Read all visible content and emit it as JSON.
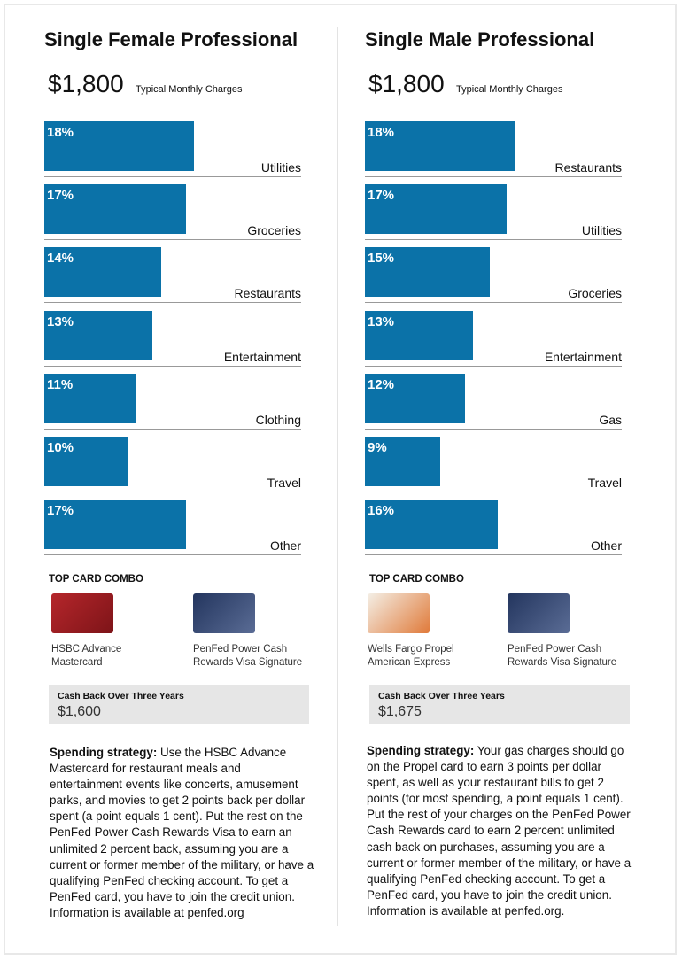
{
  "chart_data": [
    {
      "type": "bar",
      "orientation": "horizontal",
      "title": "Single Female Professional",
      "amount": "$1,800",
      "amount_label": "Typical Monthly Charges",
      "color": "#0b72a8",
      "categories": [
        "Utilities",
        "Groceries",
        "Restaurants",
        "Entertainment",
        "Clothing",
        "Travel",
        "Other"
      ],
      "values": [
        18,
        17,
        14,
        13,
        11,
        10,
        17
      ],
      "value_labels": [
        "18%",
        "17%",
        "14%",
        "13%",
        "11%",
        "10%",
        "17%"
      ],
      "combo_title": "TOP CARD COMBO",
      "cards": [
        "HSBC Advance Mastercard",
        "PenFed Power Cash Rewards Visa Signature"
      ],
      "cashback_label": "Cash Back Over Three Years",
      "cashback": "$1,600",
      "strategy_lead": "Spending strategy:",
      "strategy": "Use the HSBC Advance Mastercard for restaurant meals and entertainment events like concerts, amusement parks, and movies to get 2 points back per dollar spent (a point equals 1 cent). Put the rest on the PenFed Power Cash Rewards Visa to earn an unlimited 2 percent back, assuming you are a current or former member of the military, or have a qualifying PenFed checking account. To get a PenFed card, you have to join the credit union. Information is available at penfed.org"
    },
    {
      "type": "bar",
      "orientation": "horizontal",
      "title": "Single Male Professional",
      "amount": "$1,800",
      "amount_label": "Typical Monthly Charges",
      "color": "#0b72a8",
      "categories": [
        "Restaurants",
        "Utilities",
        "Groceries",
        "Entertainment",
        "Gas",
        "Travel",
        "Other"
      ],
      "values": [
        18,
        17,
        15,
        13,
        12,
        9,
        16
      ],
      "value_labels": [
        "18%",
        "17%",
        "15%",
        "13%",
        "12%",
        "9%",
        "16%"
      ],
      "combo_title": "TOP CARD COMBO",
      "cards": [
        "Wells Fargo Propel American Express",
        "PenFed Power Cash Rewards Visa Signature"
      ],
      "cashback_label": "Cash Back Over Three Years",
      "cashback": "$1,675",
      "strategy_lead": "Spending strategy:",
      "strategy": "Your gas charges should go on the Propel card to earn 3 points per dollar spent, as well as your restaurant bills to get 2 points (for most spending, a point equals 1 cent). Put the rest of your charges on the PenFed Power Cash Rewards card to earn 2 percent unlimited cash back on purchases, assuming you are a current or former member of the military, or have a qualifying PenFed checking account. To get a PenFed card, you have to join the credit union. Information is available at penfed.org."
    }
  ]
}
